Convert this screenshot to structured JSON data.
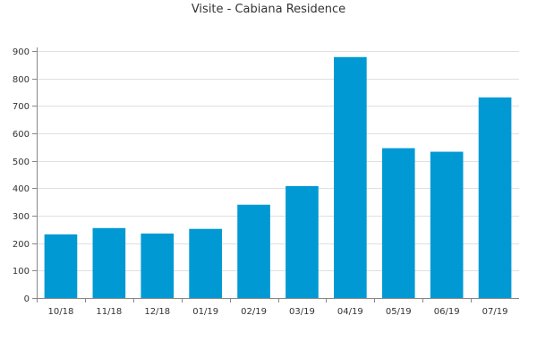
{
  "chart_data": {
    "type": "bar",
    "title": "Visite - Cabiana Residence",
    "categories": [
      "10/18",
      "11/18",
      "12/18",
      "01/19",
      "02/19",
      "03/19",
      "04/19",
      "05/19",
      "06/19",
      "07/19"
    ],
    "values": [
      232,
      255,
      235,
      252,
      340,
      408,
      878,
      546,
      533,
      731
    ],
    "ylim": [
      0,
      900
    ],
    "yticks": [
      0,
      100,
      200,
      300,
      400,
      500,
      600,
      700,
      800,
      900
    ],
    "grid": true,
    "legend": "none",
    "bar_color": "#0099d4",
    "grid_color": "#e0e0e0",
    "axis_color": "#888888"
  }
}
